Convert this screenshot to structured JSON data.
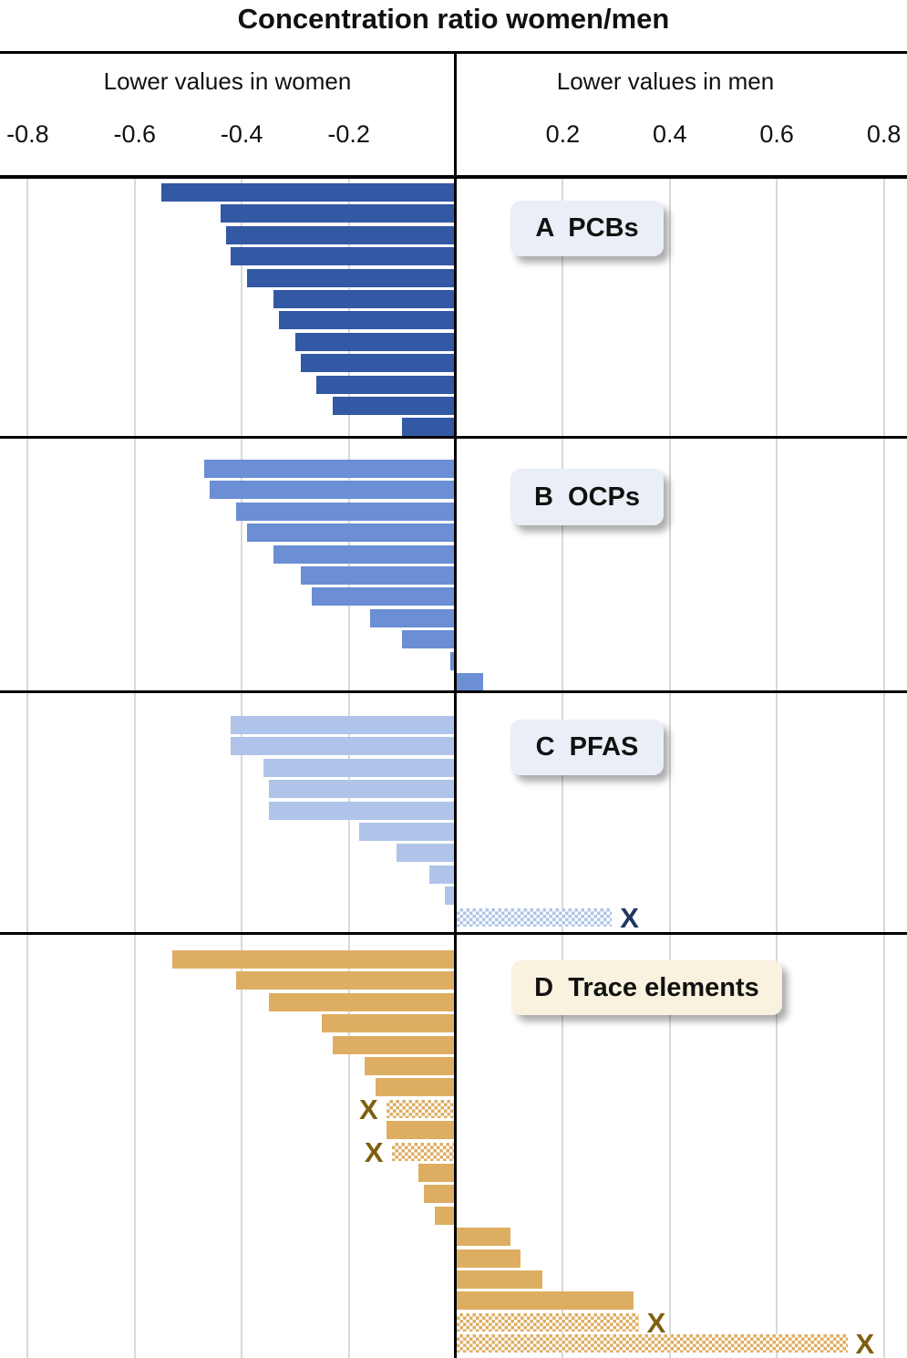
{
  "chart_data": {
    "type": "bar",
    "variant": "horizontal-diverging",
    "title": "Concentration ratio women/men",
    "x_marker_glyph": "X",
    "axis": {
      "left_label": "Lower values in women",
      "right_label": "Lower values in men",
      "xlim": [
        -0.8,
        0.8
      ],
      "tick_labels": [
        "-0.8",
        "-0.6",
        "-0.4",
        "-0.2",
        "0.2",
        "0.4",
        "0.6",
        "0.8"
      ],
      "tick_values": [
        -0.8,
        -0.6,
        -0.4,
        -0.2,
        0.2,
        0.4,
        0.6,
        0.8
      ],
      "grid": true
    },
    "colors": {
      "grid": "#D9D9D9",
      "axis_line": "#000000",
      "text": "#111111"
    },
    "panels": [
      {
        "id": "A",
        "badge_label": "A  PCBs",
        "bar_color": "#3358A4",
        "badge_bg": "#EAEEF6",
        "x_color": "#1F3864",
        "bars": [
          {
            "v": -0.55
          },
          {
            "v": -0.44
          },
          {
            "v": -0.43
          },
          {
            "v": -0.42
          },
          {
            "v": -0.39
          },
          {
            "v": -0.34
          },
          {
            "v": -0.33
          },
          {
            "v": -0.3
          },
          {
            "v": -0.29
          },
          {
            "v": -0.26
          },
          {
            "v": -0.23
          },
          {
            "v": -0.1
          }
        ]
      },
      {
        "id": "B",
        "badge_label": "B  OCPs",
        "bar_color": "#6B8ED4",
        "badge_bg": "#EAEEF6",
        "x_color": "#1F3864",
        "bars": [
          {
            "v": -0.47
          },
          {
            "v": -0.46
          },
          {
            "v": -0.41
          },
          {
            "v": -0.39
          },
          {
            "v": -0.34
          },
          {
            "v": -0.29
          },
          {
            "v": -0.27
          },
          {
            "v": -0.16
          },
          {
            "v": -0.1
          },
          {
            "v": -0.01
          },
          {
            "v": 0.05
          }
        ]
      },
      {
        "id": "C",
        "badge_label": "C  PFAS",
        "bar_color": "#AFC4E8",
        "badge_bg": "#EAEEF6",
        "x_color": "#1F3864",
        "bars": [
          {
            "v": -0.42
          },
          {
            "v": -0.42
          },
          {
            "v": -0.36
          },
          {
            "v": -0.35
          },
          {
            "v": -0.35
          },
          {
            "v": -0.18
          },
          {
            "v": -0.11
          },
          {
            "v": -0.05
          },
          {
            "v": -0.02
          },
          {
            "v": 0.29,
            "hatched": true,
            "x_mark": true
          }
        ]
      },
      {
        "id": "D",
        "badge_label": "D  Trace elements",
        "bar_color": "#DDAE62",
        "badge_bg": "#F8F2DE",
        "x_color": "#7F5F10",
        "bars": [
          {
            "v": -0.53
          },
          {
            "v": -0.41
          },
          {
            "v": -0.35
          },
          {
            "v": -0.25
          },
          {
            "v": -0.23
          },
          {
            "v": -0.17
          },
          {
            "v": -0.15
          },
          {
            "v": -0.13,
            "hatched": true,
            "x_mark": true
          },
          {
            "v": -0.13
          },
          {
            "v": -0.12,
            "hatched": true,
            "x_mark": true
          },
          {
            "v": -0.07
          },
          {
            "v": -0.06
          },
          {
            "v": -0.04
          },
          {
            "v": 0.1
          },
          {
            "v": 0.12
          },
          {
            "v": 0.16
          },
          {
            "v": 0.33
          },
          {
            "v": 0.34,
            "hatched": true,
            "x_mark": true
          },
          {
            "v": 0.73,
            "hatched": true,
            "x_mark": true
          }
        ]
      }
    ]
  }
}
